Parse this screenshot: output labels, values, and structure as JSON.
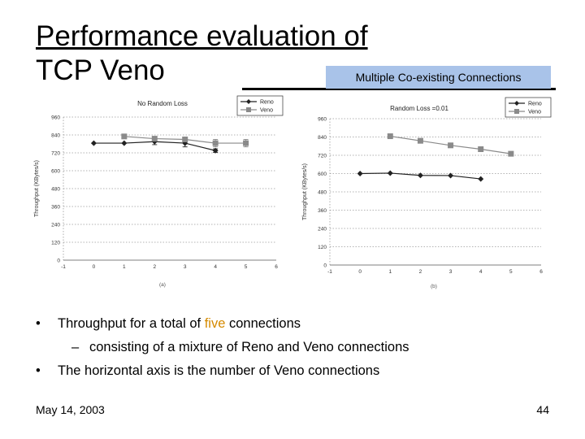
{
  "slide": {
    "title_line1": "Performance evaluation of",
    "title_line2": "TCP Veno",
    "callout": "Multiple Co-existing Connections",
    "bullets": [
      {
        "pre": "Throughput for a total of ",
        "highlight": "five",
        "post": " connections"
      },
      {
        "sub": "consisting of a mixture of Reno and Veno connections"
      },
      {
        "text": "The horizontal axis is the number of Veno connections"
      }
    ],
    "bullet_glyph": "•",
    "dash_glyph": "–",
    "footer_date": "May 14, 2003",
    "page_number": "44",
    "highlight_color": "#d58a00",
    "callout_color": "#a9c3e9"
  },
  "chart_data": [
    {
      "type": "line",
      "title": "No Random Loss",
      "caption": "(a)",
      "ylabel": "Throughput (KBytes/s)",
      "xlabel": "",
      "xlim": [
        -1,
        6
      ],
      "ylim": [
        0,
        960
      ],
      "xticks": [
        -1,
        0,
        1,
        2,
        3,
        4,
        5,
        6
      ],
      "yticks": [
        0,
        120,
        240,
        360,
        480,
        600,
        720,
        840,
        960
      ],
      "grid": true,
      "legend_position": "top-right",
      "series": [
        {
          "name": "Reno",
          "color": "#222222",
          "marker": "diamond",
          "x": [
            0,
            1,
            2,
            3,
            4
          ],
          "y": [
            785,
            785,
            795,
            785,
            735
          ],
          "err": [
            0,
            0,
            20,
            25,
            12
          ]
        },
        {
          "name": "Veno",
          "color": "#8a8a8a",
          "marker": "square",
          "x": [
            1,
            2,
            3,
            4,
            5
          ],
          "y": [
            830,
            815,
            810,
            785,
            785
          ],
          "err": [
            0,
            0,
            15,
            25,
            25
          ]
        }
      ]
    },
    {
      "type": "line",
      "title": "Random Loss =0.01",
      "caption": "(b)",
      "ylabel": "Throughput (KBytes/s)",
      "xlabel": "",
      "xlim": [
        -1,
        6
      ],
      "ylim": [
        0,
        960
      ],
      "xticks": [
        -1,
        0,
        1,
        2,
        3,
        4,
        5,
        6
      ],
      "yticks": [
        0,
        120,
        240,
        360,
        480,
        600,
        720,
        840,
        960
      ],
      "grid": true,
      "legend_position": "top-right",
      "series": [
        {
          "name": "Reno",
          "color": "#222222",
          "marker": "diamond",
          "x": [
            0,
            1,
            2,
            3,
            4
          ],
          "y": [
            600,
            603,
            588,
            587,
            565
          ]
        },
        {
          "name": "Veno",
          "color": "#8a8a8a",
          "marker": "square",
          "x": [
            1,
            2,
            3,
            4,
            5
          ],
          "y": [
            845,
            815,
            785,
            760,
            730
          ]
        }
      ]
    }
  ]
}
